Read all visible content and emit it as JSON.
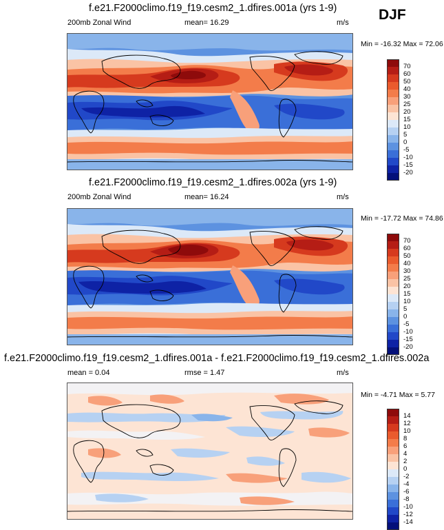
{
  "season": "DJF",
  "panels": [
    {
      "title": "f.e21.F2000climo.f19_f19.cesm2_1.dfires.001a (yrs 1-9)",
      "left_label": "200mb Zonal Wind",
      "mid_label": "mean=  16.29",
      "units": "m/s",
      "minmax": "Min = -16.32 Max =  72.06",
      "colorbar_ticks": [
        "70",
        "60",
        "50",
        "40",
        "30",
        "25",
        "20",
        "15",
        "10",
        "5",
        "0",
        "-5",
        "-10",
        "-15",
        "-20"
      ],
      "colorbar_colors": [
        "#8e0b0b",
        "#b51d15",
        "#d63a1e",
        "#ea5b2d",
        "#f37c4a",
        "#f8a07a",
        "#fac3a5",
        "#fde4d4",
        "#dce9f8",
        "#b6d1f2",
        "#89b4ea",
        "#5d92e0",
        "#3a6fd8",
        "#2148c8",
        "#0e22a5",
        "#04107a"
      ],
      "map_fills": {
        "background": "#f3f2f4",
        "strong_westerly": "#d63a1e",
        "westerly": "#f37c4a",
        "jet_core": "#8e0b0b",
        "weak_westerly": "#fac3a5",
        "easterly": "#5d92e0",
        "strong_easterly": "#2148c8"
      }
    },
    {
      "title": "f.e21.F2000climo.f19_f19.cesm2_1.dfires.002a (yrs 1-9)",
      "left_label": "200mb Zonal Wind",
      "mid_label": "mean=  16.24",
      "units": "m/s",
      "minmax": "Min = -17.72 Max =  74.86",
      "colorbar_ticks": [
        "70",
        "60",
        "50",
        "40",
        "30",
        "25",
        "20",
        "15",
        "10",
        "5",
        "0",
        "-5",
        "-10",
        "-15",
        "-20"
      ],
      "colorbar_colors": [
        "#8e0b0b",
        "#b51d15",
        "#d63a1e",
        "#ea5b2d",
        "#f37c4a",
        "#f8a07a",
        "#fac3a5",
        "#fde4d4",
        "#dce9f8",
        "#b6d1f2",
        "#89b4ea",
        "#5d92e0",
        "#3a6fd8",
        "#2148c8",
        "#0e22a5",
        "#04107a"
      ]
    },
    {
      "title": "f.e21.F2000climo.f19_f19.cesm2_1.dfires.001a - f.e21.F2000climo.f19_f19.cesm2_1.dfires.002a",
      "left_label": "mean =  0.04",
      "mid_label": "rmse =  1.47",
      "units": "m/s",
      "minmax": "Min = -4.71 Max =  5.77",
      "colorbar_ticks": [
        "14",
        "12",
        "10",
        "8",
        "6",
        "4",
        "2",
        "0",
        "-2",
        "-4",
        "-6",
        "-8",
        "-10",
        "-12",
        "-14"
      ],
      "colorbar_colors": [
        "#8e0b0b",
        "#b51d15",
        "#d63a1e",
        "#ea5b2d",
        "#f37c4a",
        "#f8a07a",
        "#fac3a5",
        "#fde4d4",
        "#dce9f8",
        "#b6d1f2",
        "#89b4ea",
        "#5d92e0",
        "#3a6fd8",
        "#2148c8",
        "#0e22a5",
        "#04107a"
      ],
      "map_fills": {
        "background": "#fde4d4",
        "positive": "#f8a07a",
        "negative": "#b6d1f2",
        "neutral": "#f3f2f4"
      }
    }
  ]
}
